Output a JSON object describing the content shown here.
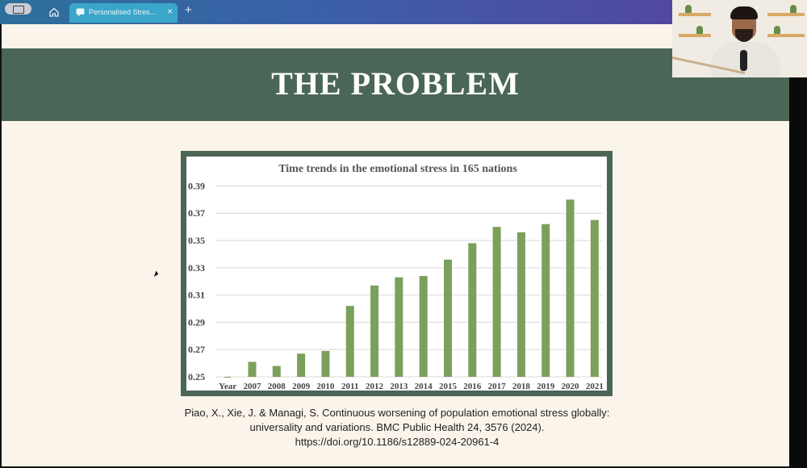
{
  "browser": {
    "tab_title": "Personalised Stres...",
    "tab_close": "×",
    "new_tab": "+"
  },
  "slide": {
    "title": "THE PROBLEM",
    "citation_lines": [
      "Piao, X., Xie, J. & Managi, S. Continuous worsening of population emotional stress globally:",
      "universality and variations. BMC Public Health 24, 3576 (2024).",
      "https://doi.org/10.1186/s12889-024-20961-4"
    ]
  },
  "colors": {
    "band": "#4a6656",
    "bar": "#7ba05b",
    "slide_bg": "#fbf4ea"
  },
  "chart_data": {
    "type": "bar",
    "title": "Time trends in the emotional stress in 165 nations",
    "x_first_label": "Year",
    "categories": [
      "2007",
      "2008",
      "2009",
      "2010",
      "2011",
      "2012",
      "2013",
      "2014",
      "2015",
      "2016",
      "2017",
      "2018",
      "2019",
      "2020",
      "2021"
    ],
    "values": [
      0.261,
      0.258,
      0.267,
      0.269,
      0.302,
      0.317,
      0.323,
      0.324,
      0.336,
      0.348,
      0.36,
      0.356,
      0.362,
      0.38,
      0.365
    ],
    "yticks": [
      "0.25",
      "0.27",
      "0.29",
      "0.31",
      "0.33",
      "0.35",
      "0.37",
      "0.39"
    ],
    "ylim": [
      0.25,
      0.395
    ],
    "grid": true
  }
}
